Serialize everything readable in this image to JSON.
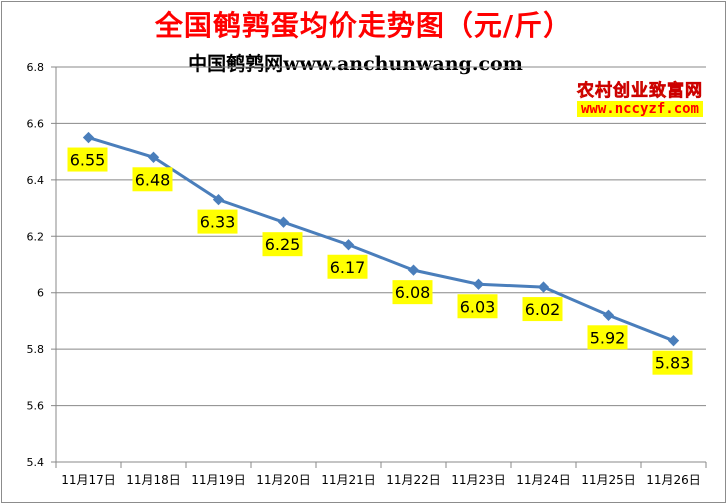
{
  "chart_data": {
    "type": "line",
    "title": "全国鹌鹑蛋均价走势图（元/斤）",
    "subtitle": "中国鹌鹑网www.anchunwang.com",
    "categories": [
      "11月17日",
      "11月18日",
      "11月19日",
      "11月20日",
      "11月21日",
      "11月22日",
      "11月23日",
      "11月24日",
      "11月25日",
      "11月26日"
    ],
    "values": [
      6.55,
      6.48,
      6.33,
      6.25,
      6.17,
      6.08,
      6.03,
      6.02,
      5.92,
      5.83
    ],
    "data_labels": [
      "6.55",
      "6.48",
      "6.33",
      "6.25",
      "6.17",
      "6.08",
      "6.03",
      "6.02",
      "5.92",
      "5.83"
    ],
    "ylim": [
      5.4,
      6.8
    ],
    "yticks": [
      5.4,
      5.6,
      5.8,
      6,
      6.2,
      6.4,
      6.6,
      6.8
    ],
    "ytick_labels": [
      "5.4",
      "5.6",
      "5.8",
      "6",
      "6.2",
      "6.4",
      "6.6",
      "6.8"
    ],
    "grid": true,
    "colors": {
      "line": "#4a7ebb",
      "label_bg": "#ffff00",
      "title": "#ff0000"
    }
  },
  "watermark": {
    "name": "农村创业致富网",
    "url": "www.nccyzf.com"
  }
}
